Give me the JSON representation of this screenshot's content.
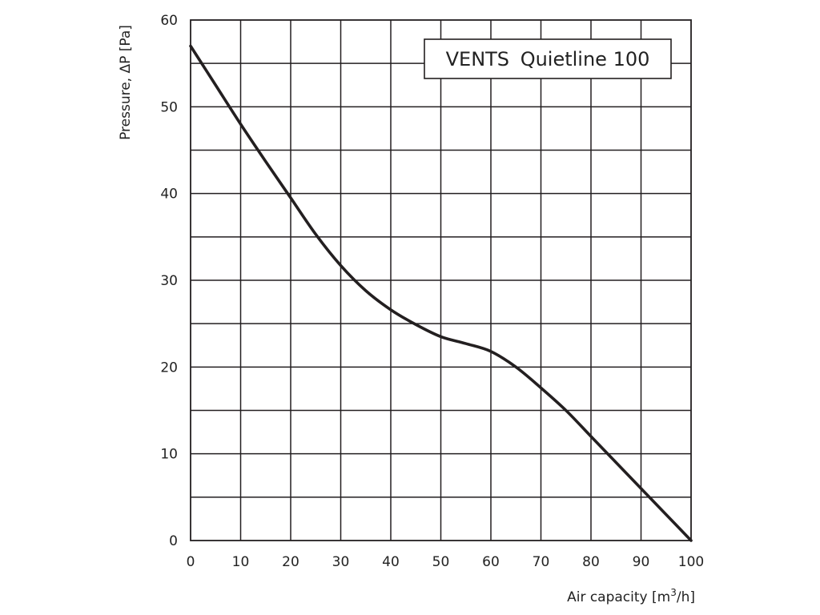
{
  "chart_data": {
    "type": "line",
    "title": "",
    "legend_box": {
      "brand": "VENTS",
      "model": "Quietline 100",
      "placement": "top-right"
    },
    "xlabel": {
      "text": "Air capacity [m",
      "sup": "3",
      "tail": "/h]"
    },
    "ylabel": "Pressure, ΔP [Pa]",
    "xlim": [
      0,
      100
    ],
    "ylim": [
      0,
      60
    ],
    "x_ticks": [
      0,
      10,
      20,
      30,
      40,
      50,
      60,
      70,
      80,
      90,
      100
    ],
    "y_ticks": [
      0,
      10,
      20,
      30,
      40,
      50,
      60
    ],
    "grid": {
      "x_step": 10,
      "y_step": 5,
      "on": true
    },
    "series": [
      {
        "x": [
          0,
          5,
          10,
          15,
          20,
          25,
          30,
          35,
          40,
          45,
          50,
          55,
          60,
          65,
          70,
          75,
          80,
          85,
          90,
          95,
          100
        ],
        "y": [
          57,
          52.5,
          48,
          43.7,
          39.5,
          35.3,
          31.7,
          28.8,
          26.6,
          24.9,
          23.5,
          22.7,
          21.8,
          20,
          17.6,
          15,
          12,
          9,
          6,
          3,
          0
        ]
      }
    ],
    "colors": {
      "line": "#231f20",
      "grid": "#231f20",
      "text": "#222222"
    }
  }
}
